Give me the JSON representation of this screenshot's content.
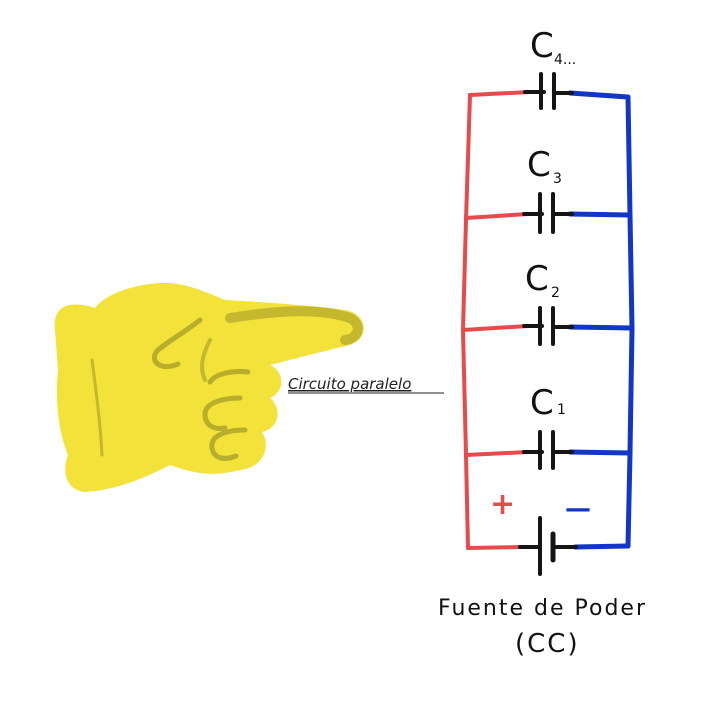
{
  "pointer": {
    "label": "Circuito paralelo"
  },
  "capacitors": [
    {
      "letter": "C",
      "index": "4..."
    },
    {
      "letter": "C",
      "index": "3"
    },
    {
      "letter": "C",
      "index": "2"
    },
    {
      "letter": "C",
      "index": "1"
    }
  ],
  "source": {
    "positive_sign": "+",
    "negative_sign": "—",
    "label_line1": "Fuente de Poder",
    "label_line2": "(CC)"
  },
  "colors": {
    "positive_wire": "#e64a4a",
    "negative_wire": "#1236c8",
    "hand_fill": "#f2e23a",
    "hand_line": "#b9ad2c",
    "component": "#151515"
  }
}
